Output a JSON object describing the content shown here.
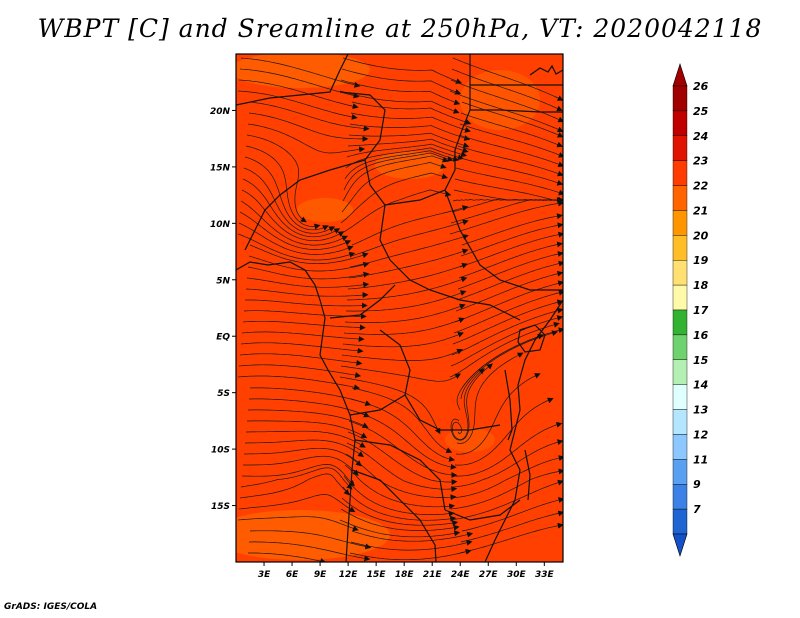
{
  "title": "WBPT [C] and Sreamline at 250hPa, VT: 2020042118",
  "footer": "GrADS: IGES/COLA",
  "map": {
    "lat_labels": [
      {
        "label": "20N",
        "lat": 20
      },
      {
        "label": "15N",
        "lat": 15
      },
      {
        "label": "10N",
        "lat": 10
      },
      {
        "label": "5N",
        "lat": 5
      },
      {
        "label": "EQ",
        "lat": 0
      },
      {
        "label": "5S",
        "lat": -5
      },
      {
        "label": "10S",
        "lat": -10
      },
      {
        "label": "15S",
        "lat": -15
      }
    ],
    "lon_labels": [
      {
        "label": "3E",
        "lon": 3
      },
      {
        "label": "6E",
        "lon": 6
      },
      {
        "label": "9E",
        "lon": 9
      },
      {
        "label": "12E",
        "lon": 12
      },
      {
        "label": "15E",
        "lon": 15
      },
      {
        "label": "18E",
        "lon": 18
      },
      {
        "label": "21E",
        "lon": 21
      },
      {
        "label": "24E",
        "lon": 24
      },
      {
        "label": "27E",
        "lon": 27
      },
      {
        "label": "30E",
        "lon": 30
      },
      {
        "label": "33E",
        "lon": 33
      }
    ],
    "lon_range": [
      0,
      35
    ],
    "lat_range": [
      -20,
      25
    ],
    "background_color": "#ff4000"
  },
  "colorbar": {
    "levels": [
      {
        "label": "26",
        "color": "#a00000"
      },
      {
        "label": "25",
        "color": "#c00000"
      },
      {
        "label": "24",
        "color": "#e01400"
      },
      {
        "label": "23",
        "color": "#ff3c00"
      },
      {
        "label": "22",
        "color": "#ff6400"
      },
      {
        "label": "21",
        "color": "#ff9600"
      },
      {
        "label": "20",
        "color": "#ffbe28"
      },
      {
        "label": "19",
        "color": "#ffe070"
      },
      {
        "label": "18",
        "color": "#fffaaa"
      },
      {
        "label": "17",
        "color": "#32b432"
      },
      {
        "label": "16",
        "color": "#6ed26e"
      },
      {
        "label": "15",
        "color": "#b4f0b4"
      },
      {
        "label": "14",
        "color": "#e0ffff"
      },
      {
        "label": "13",
        "color": "#b4e6ff"
      },
      {
        "label": "12",
        "color": "#8cc8ff"
      },
      {
        "label": "11",
        "color": "#5aa0f0"
      },
      {
        "label": "9",
        "color": "#3c82e6"
      },
      {
        "label": "7",
        "color": "#1e64d2"
      }
    ],
    "top_arrow_color": "#a00000",
    "bottom_arrow_color": "#1450c8"
  }
}
